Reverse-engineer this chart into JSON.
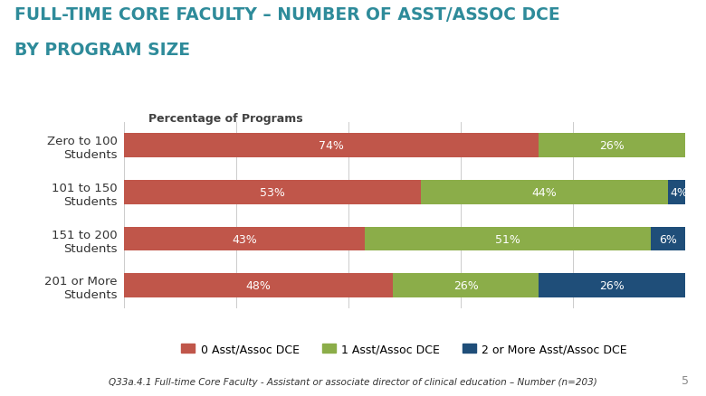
{
  "title_line1": "FULL-TIME CORE FACULTY – NUMBER OF ASST/ASSOC DCE",
  "title_line2": "BY PROGRAM SIZE",
  "subtitle": "Percentage of Programs",
  "categories": [
    "Zero to 100\nStudents",
    "101 to 150\nStudents",
    "151 to 200\nStudents",
    "201 or More\nStudents"
  ],
  "series": [
    {
      "label": "0 Asst/Assoc DCE",
      "color": "#C0564A",
      "values": [
        74,
        53,
        43,
        48
      ]
    },
    {
      "label": "1 Asst/Assoc DCE",
      "color": "#8BAD49",
      "values": [
        26,
        44,
        51,
        26
      ]
    },
    {
      "label": "2 or More Asst/Assoc DCE",
      "color": "#1F4E79",
      "values": [
        0,
        4,
        6,
        26
      ]
    }
  ],
  "footnote": "Q33a.4.1 Full-time Core Faculty - Assistant or associate director of clinical education – Number (n=203)",
  "page_number": "5",
  "background_color": "#FFFFFF",
  "title_color": "#2E8B9A",
  "subtitle_color": "#404040",
  "bar_label_color": "#FFFFFF",
  "bar_height": 0.52,
  "xlim": [
    0,
    100
  ]
}
